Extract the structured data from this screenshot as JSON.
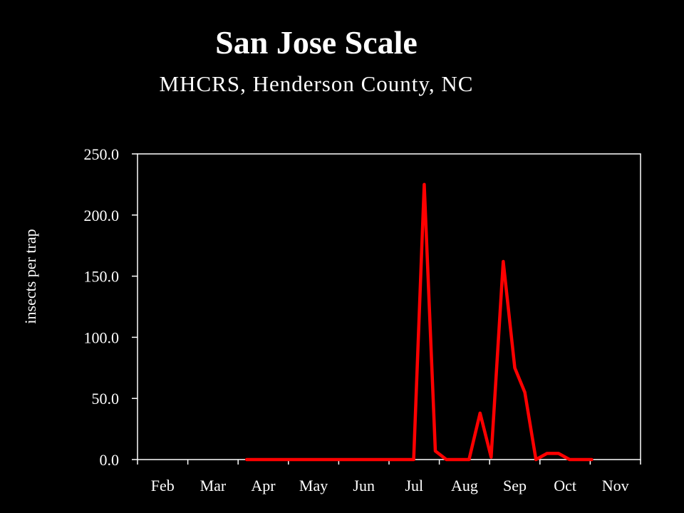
{
  "chart_data": {
    "type": "line",
    "title": "San Jose Scale",
    "subtitle": "MHCRS, Henderson County, NC",
    "xlabel": "",
    "ylabel": "insects per trap",
    "ylim": [
      0,
      250
    ],
    "y_ticks": [
      "0.0",
      "50.0",
      "100.0",
      "150.0",
      "200.0",
      "250.0"
    ],
    "y_tick_values": [
      0,
      50,
      100,
      150,
      200,
      250
    ],
    "x_tick_labels": [
      "Feb",
      "Mar",
      "Apr",
      "May",
      "Jun",
      "Jul",
      "Aug",
      "Sep",
      "Oct",
      "Nov"
    ],
    "grid": false,
    "legend": "none",
    "series": [
      {
        "color": "#ff0000",
        "x": [
          2.67,
          2.9,
          3.13,
          3.35,
          3.57,
          3.79,
          4.02,
          4.24,
          4.46,
          4.68,
          4.91,
          5.13,
          5.35,
          5.57,
          5.79,
          5.99,
          6.2,
          6.42,
          6.64,
          6.87,
          7.09,
          7.31,
          7.53,
          7.77,
          8.0,
          8.2,
          8.42,
          8.64,
          8.87,
          9.09,
          9.31,
          9.53
        ],
        "values": [
          0,
          0,
          0,
          0,
          0,
          0,
          0,
          0,
          0,
          0,
          0,
          0,
          0,
          0,
          0,
          0,
          225,
          7,
          0,
          0,
          0,
          38,
          2,
          162,
          75,
          55,
          0,
          5,
          5,
          0,
          0,
          0
        ]
      }
    ]
  }
}
